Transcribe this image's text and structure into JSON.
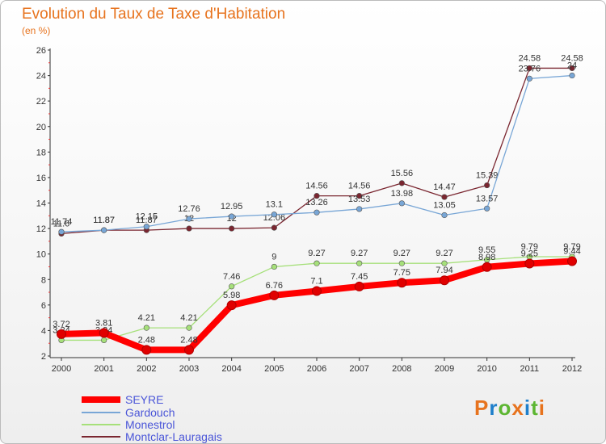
{
  "title": "Evolution du Taux de Taxe d'Habitation",
  "subtitle": "(en %)",
  "logo": {
    "text": "Proxiti",
    "letter_colors": [
      "#e7731e",
      "#1e7fcb",
      "#5db632",
      "#e7731e",
      "#1e7fcb",
      "#5db632",
      "#e7731e"
    ]
  },
  "chart_data": {
    "type": "line",
    "x": [
      "2000",
      "2001",
      "2002",
      "2003",
      "2004",
      "2005",
      "2006",
      "2007",
      "2008",
      "2009",
      "2010",
      "2011",
      "2012"
    ],
    "ylim": [
      2,
      26
    ],
    "yticks": [
      "2",
      "4",
      "6",
      "8",
      "10",
      "12",
      "14",
      "16",
      "18",
      "20",
      "22",
      "24",
      "26"
    ],
    "grid": false,
    "legend_position": "bottom-left",
    "series": [
      {
        "name": "SEYRE",
        "color": "#ff0000",
        "values": [
          3.72,
          3.81,
          2.48,
          2.48,
          5.98,
          6.76,
          7.1,
          7.45,
          7.75,
          7.94,
          8.98,
          9.25,
          9.44
        ],
        "labels": [
          "3.72",
          "3.81",
          "2.48",
          "2.48",
          "5.98",
          "6.76",
          "7.1",
          "7.45",
          "7.75",
          "7.94",
          "8.98",
          "9.25",
          "9.44"
        ]
      },
      {
        "name": "Gardouch",
        "color": "#78a6d6",
        "values": [
          11.74,
          11.87,
          12.15,
          12.76,
          12.95,
          13.1,
          13.26,
          13.53,
          13.98,
          13.05,
          13.57,
          23.76,
          24
        ],
        "labels": [
          "11.74",
          "11.87",
          "12.15",
          "12.76",
          "12.95",
          "13.1",
          "13.26",
          "13.53",
          "13.98",
          "13.05",
          "13.57",
          "23.76",
          "24"
        ]
      },
      {
        "name": "Monestrol",
        "color": "#a6e07a",
        "values": [
          3.24,
          3.24,
          4.21,
          4.21,
          7.46,
          9,
          9.27,
          9.27,
          9.27,
          9.27,
          9.55,
          9.79,
          9.79
        ],
        "labels": [
          "3.24",
          "3.24",
          "4.21",
          "4.21",
          "7.46",
          "9",
          "9.27",
          "9.27",
          "9.27",
          "9.27",
          "9.55",
          "9.79",
          "9.79"
        ]
      },
      {
        "name": "Montclar-Lauragais",
        "color": "#7a2630",
        "values": [
          11.6,
          11.87,
          11.87,
          12,
          12,
          12.06,
          14.56,
          14.56,
          15.56,
          14.47,
          15.39,
          24.58,
          24.58
        ],
        "labels": [
          "11.6",
          "11.87",
          "11.87",
          "12",
          "12",
          "12.06",
          "14.56",
          "14.56",
          "15.56",
          "14.47",
          "15.39",
          "24.58",
          "24.58"
        ]
      }
    ]
  }
}
